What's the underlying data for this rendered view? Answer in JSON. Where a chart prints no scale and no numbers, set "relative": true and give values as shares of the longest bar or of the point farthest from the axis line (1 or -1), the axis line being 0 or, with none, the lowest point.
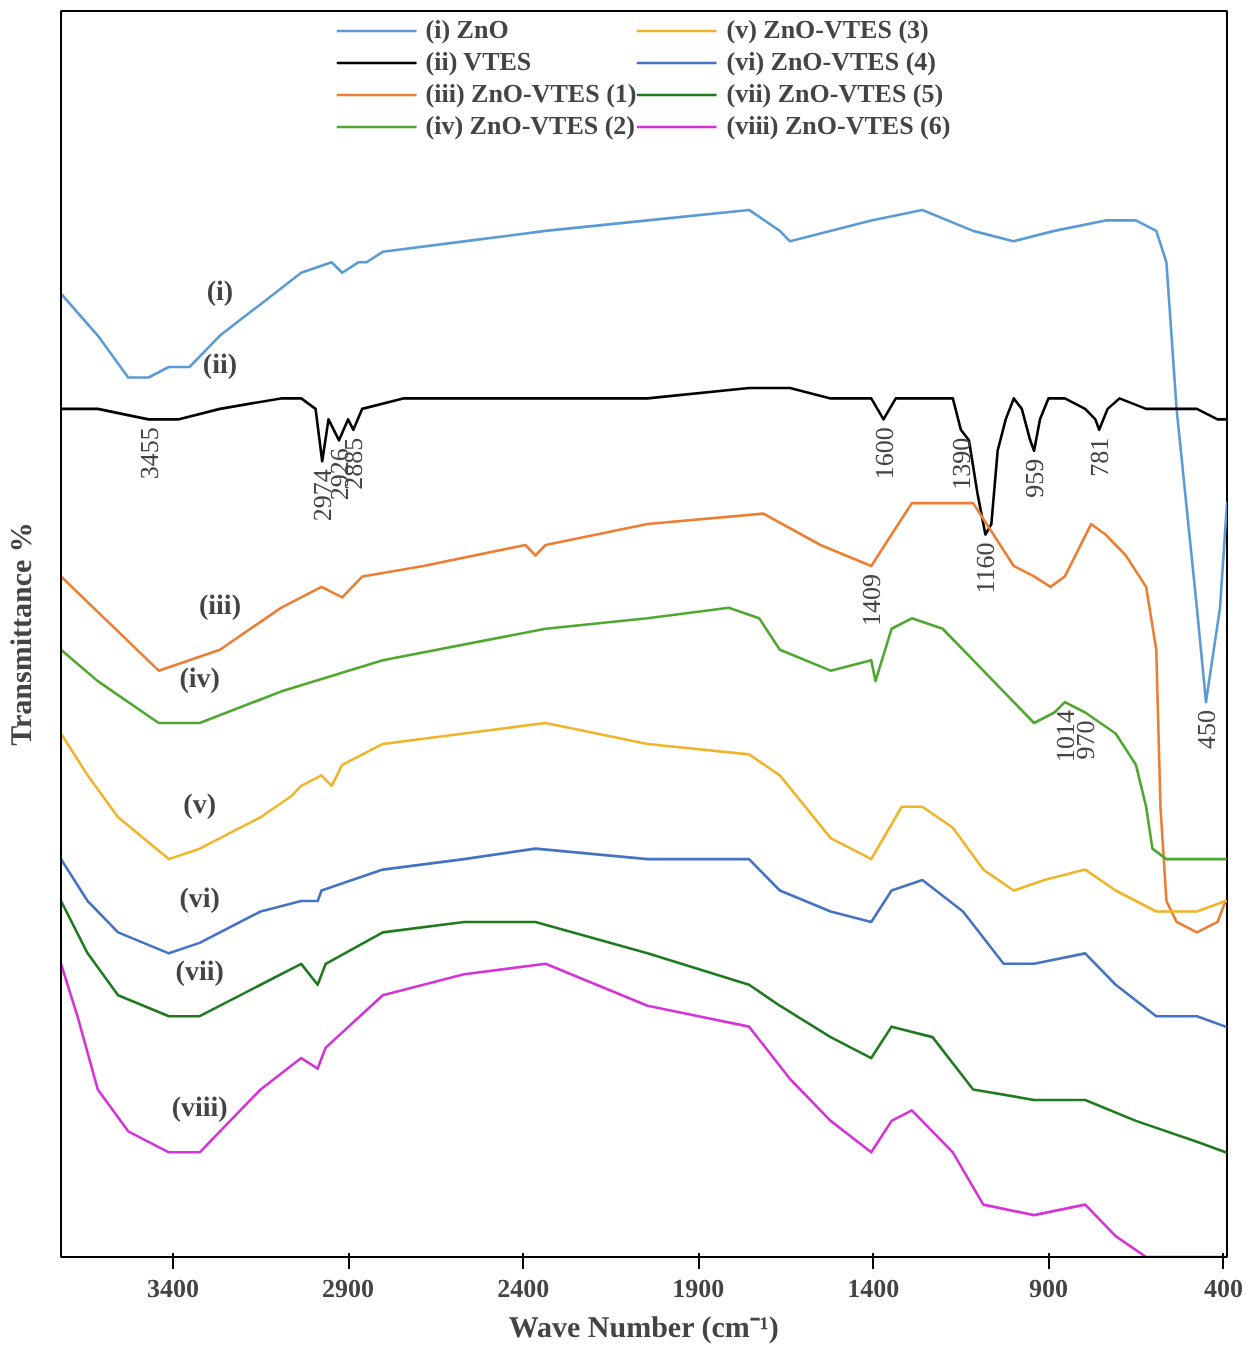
{
  "chart_data": {
    "type": "line",
    "relative": true,
    "xlabel": "Wave Number (cm⁻¹)",
    "ylabel": "Transmittance %",
    "xlim": [
      3720,
      390
    ],
    "xticks": [
      3400,
      2900,
      2400,
      1900,
      1400,
      900,
      400
    ],
    "grid": false,
    "legend": "top",
    "marker": "none",
    "line_style": "solid",
    "series": [
      {
        "name": "(i) ZnO",
        "color": "#5b9bd5",
        "x": [
          3720,
          3615,
          3528,
          3470,
          3412,
          3353,
          3266,
          3150,
          3034,
          2947,
          2917,
          2871,
          2848,
          2801,
          2569,
          2336,
          2045,
          1755,
          1667,
          1638,
          1406,
          1260,
          1115,
          1000,
          883,
          737,
          650,
          592,
          563,
          534,
          476,
          450,
          410,
          390
        ],
        "values": [
          0.92,
          0.88,
          0.84,
          0.84,
          0.85,
          0.85,
          0.88,
          0.91,
          0.94,
          0.95,
          0.94,
          0.95,
          0.95,
          0.96,
          0.97,
          0.98,
          0.99,
          1.0,
          0.98,
          0.97,
          0.99,
          1.0,
          0.98,
          0.97,
          0.98,
          0.99,
          0.99,
          0.98,
          0.95,
          0.81,
          0.62,
          0.53,
          0.62,
          0.72
        ]
      },
      {
        "name": "(ii) VTES",
        "color": "#000000",
        "x": [
          3720,
          3615,
          3470,
          3383,
          3266,
          3092,
          3034,
          2993,
          2974,
          2956,
          2926,
          2900,
          2885,
          2860,
          2743,
          2336,
          2045,
          1755,
          1638,
          1522,
          1406,
          1371,
          1336,
          1231,
          1173,
          1150,
          1127,
          1103,
          1080,
          1063,
          1045,
          1022,
          999,
          976,
          952,
          941,
          924,
          900,
          853,
          795,
          766,
          755,
          731,
          697,
          621,
          534,
          476,
          417,
          394
        ],
        "values": [
          0.81,
          0.81,
          0.8,
          0.8,
          0.81,
          0.82,
          0.82,
          0.81,
          0.76,
          0.8,
          0.78,
          0.8,
          0.79,
          0.81,
          0.82,
          0.82,
          0.82,
          0.83,
          0.83,
          0.82,
          0.82,
          0.8,
          0.82,
          0.82,
          0.82,
          0.79,
          0.78,
          0.73,
          0.69,
          0.7,
          0.77,
          0.8,
          0.82,
          0.81,
          0.78,
          0.77,
          0.8,
          0.82,
          0.82,
          0.81,
          0.8,
          0.79,
          0.81,
          0.82,
          0.81,
          0.81,
          0.81,
          0.8,
          0.8
        ]
      },
      {
        "name": "(iii) ZnO-VTES (1)",
        "color": "#ed7d31",
        "x": [
          3720,
          3441,
          3266,
          3092,
          2976,
          2917,
          2859,
          2685,
          2394,
          2365,
          2336,
          2045,
          1714,
          1551,
          1406,
          1348,
          1290,
          1173,
          1115,
          1057,
          999,
          941,
          894,
          853,
          778,
          737,
          679,
          621,
          592,
          580,
          563,
          534,
          476,
          417,
          394
        ],
        "values": [
          0.65,
          0.56,
          0.58,
          0.62,
          0.64,
          0.63,
          0.65,
          0.66,
          0.68,
          0.67,
          0.68,
          0.7,
          0.71,
          0.68,
          0.66,
          0.69,
          0.72,
          0.72,
          0.72,
          0.69,
          0.66,
          0.65,
          0.64,
          0.65,
          0.7,
          0.69,
          0.67,
          0.64,
          0.58,
          0.43,
          0.34,
          0.32,
          0.31,
          0.32,
          0.34
        ]
      },
      {
        "name": "(iv) ZnO-VTES (2)",
        "color": "#4ea72e",
        "x": [
          3720,
          3615,
          3441,
          3324,
          3092,
          2801,
          2336,
          2045,
          1813,
          1726,
          1667,
          1522,
          1406,
          1394,
          1348,
          1290,
          1202,
          1115,
          1028,
          941,
          883,
          853,
          795,
          708,
          650,
          621,
          603,
          563,
          476,
          394
        ],
        "values": [
          0.58,
          0.55,
          0.51,
          0.51,
          0.54,
          0.57,
          0.6,
          0.61,
          0.62,
          0.61,
          0.58,
          0.56,
          0.57,
          0.55,
          0.6,
          0.61,
          0.6,
          0.57,
          0.54,
          0.51,
          0.52,
          0.53,
          0.52,
          0.5,
          0.47,
          0.43,
          0.39,
          0.38,
          0.38,
          0.38
        ]
      },
      {
        "name": "(v) ZnO-VTES (3)",
        "color": "#f0b429",
        "x": [
          3720,
          3644,
          3557,
          3412,
          3324,
          3150,
          3063,
          3034,
          2976,
          2947,
          2917,
          2801,
          2569,
          2336,
          2045,
          1755,
          1667,
          1522,
          1406,
          1319,
          1260,
          1173,
          1086,
          999,
          912,
          795,
          708,
          592,
          476,
          394
        ],
        "values": [
          0.5,
          0.46,
          0.42,
          0.38,
          0.39,
          0.42,
          0.44,
          0.45,
          0.46,
          0.45,
          0.47,
          0.49,
          0.5,
          0.51,
          0.49,
          0.48,
          0.46,
          0.4,
          0.38,
          0.43,
          0.43,
          0.41,
          0.37,
          0.35,
          0.36,
          0.37,
          0.35,
          0.33,
          0.33,
          0.34
        ]
      },
      {
        "name": "(vi) ZnO-VTES (4)",
        "color": "#4472c4",
        "x": [
          3720,
          3644,
          3557,
          3412,
          3324,
          3150,
          3034,
          2987,
          2976,
          2801,
          2569,
          2365,
          2045,
          1755,
          1667,
          1522,
          1406,
          1348,
          1260,
          1144,
          1028,
          941,
          795,
          708,
          592,
          476,
          394
        ],
        "values": [
          0.38,
          0.34,
          0.31,
          0.29,
          0.3,
          0.33,
          0.34,
          0.34,
          0.35,
          0.37,
          0.38,
          0.39,
          0.38,
          0.38,
          0.35,
          0.33,
          0.32,
          0.35,
          0.36,
          0.33,
          0.28,
          0.28,
          0.29,
          0.26,
          0.23,
          0.23,
          0.22
        ]
      },
      {
        "name": "(vii) ZnO-VTES (5)",
        "color": "#1f7a1f",
        "x": [
          3720,
          3644,
          3557,
          3412,
          3324,
          3150,
          3034,
          2987,
          2964,
          2801,
          2569,
          2365,
          2045,
          1755,
          1667,
          1522,
          1406,
          1348,
          1231,
          1115,
          941,
          795,
          650,
          476,
          394
        ],
        "values": [
          0.34,
          0.29,
          0.25,
          0.23,
          0.23,
          0.26,
          0.28,
          0.26,
          0.28,
          0.31,
          0.32,
          0.32,
          0.29,
          0.26,
          0.24,
          0.21,
          0.19,
          0.22,
          0.21,
          0.16,
          0.15,
          0.15,
          0.13,
          0.11,
          0.1
        ]
      },
      {
        "name": "(viii) ZnO-VTES (6)",
        "color": "#d633d6",
        "x": [
          3720,
          3673,
          3615,
          3528,
          3412,
          3324,
          3150,
          3034,
          2987,
          2964,
          2801,
          2569,
          2336,
          2045,
          1755,
          1638,
          1522,
          1406,
          1348,
          1290,
          1173,
          1086,
          941,
          795,
          708,
          621,
          476,
          394
        ],
        "values": [
          0.28,
          0.23,
          0.16,
          0.12,
          0.1,
          0.1,
          0.16,
          0.19,
          0.18,
          0.2,
          0.25,
          0.27,
          0.28,
          0.24,
          0.22,
          0.17,
          0.13,
          0.1,
          0.13,
          0.14,
          0.1,
          0.05,
          0.04,
          0.05,
          0.02,
          0.0,
          0.0,
          0.0
        ]
      }
    ],
    "annotations": [
      {
        "text": "(i)",
        "x": 3266,
        "y": 0.88
      },
      {
        "text": "(ii)",
        "x": 3266,
        "y": 0.81
      },
      {
        "text": "(iii)",
        "x": 3266,
        "y": 0.58
      },
      {
        "text": "(iv)",
        "x": 3324,
        "y": 0.51
      },
      {
        "text": "(v)",
        "x": 3324,
        "y": 0.39
      },
      {
        "text": "(vi)",
        "x": 3324,
        "y": 0.3
      },
      {
        "text": "(vii)",
        "x": 3324,
        "y": 0.23
      },
      {
        "text": "(viii)",
        "x": 3324,
        "y": 0.1
      },
      {
        "text": "3455",
        "x": 3470,
        "y": 0.8
      },
      {
        "text": "2974",
        "x": 2974,
        "y": 0.76
      },
      {
        "text": "2926",
        "x": 2926,
        "y": 0.78
      },
      {
        "text": "2885",
        "x": 2885,
        "y": 0.79
      },
      {
        "text": "1600",
        "x": 1371,
        "y": 0.8
      },
      {
        "text": "1390",
        "x": 1150,
        "y": 0.79
      },
      {
        "text": "1160",
        "x": 1080,
        "y": 0.69
      },
      {
        "text": "959",
        "x": 941,
        "y": 0.77
      },
      {
        "text": "781",
        "x": 755,
        "y": 0.79
      },
      {
        "text": "1409",
        "x": 1406,
        "y": 0.66
      },
      {
        "text": "1014",
        "x": 853,
        "y": 0.53
      },
      {
        "text": "970",
        "x": 795,
        "y": 0.52
      },
      {
        "text": "450",
        "x": 450,
        "y": 0.53
      }
    ]
  }
}
